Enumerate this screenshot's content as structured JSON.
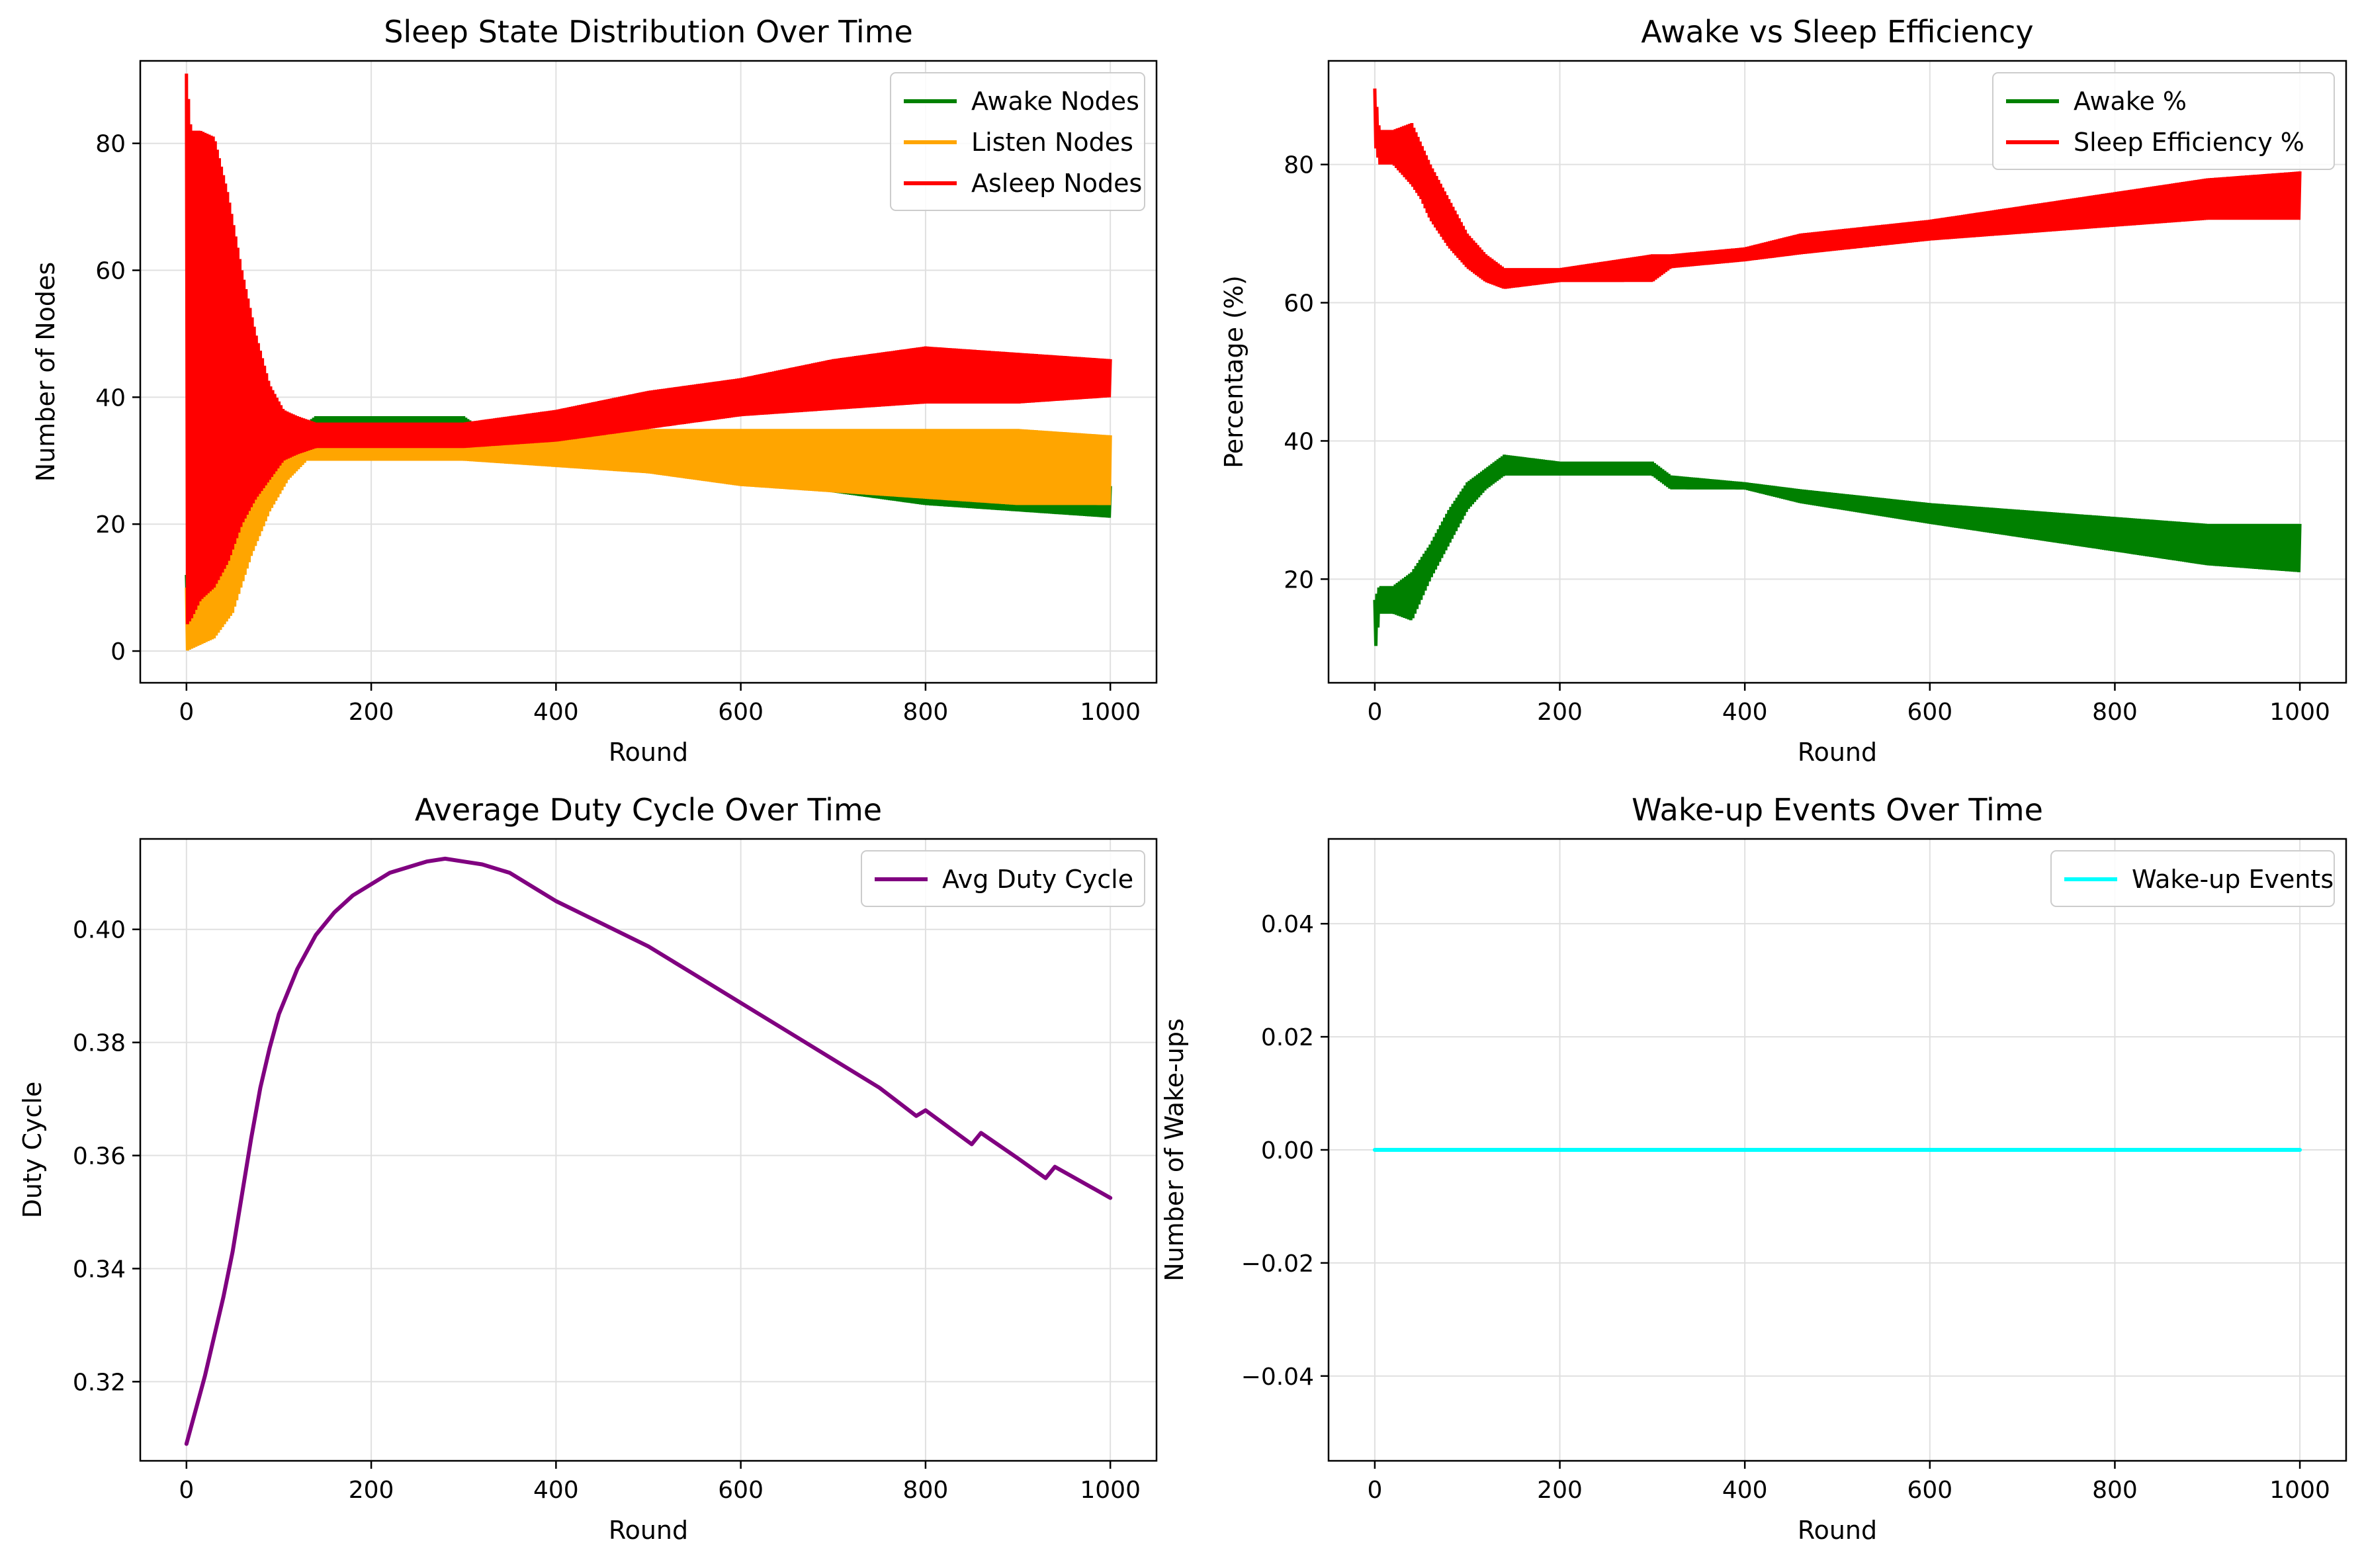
{
  "colors": {
    "awake": "#008000",
    "listen": "#FFA500",
    "asleep": "#FF0000",
    "duty": "#800080",
    "wakeup": "#00FFFF",
    "grid": "#E0E0E0",
    "frame": "#000000",
    "legend_border": "#CCCCCC"
  },
  "chart_data": [
    {
      "type": "line",
      "title": "Sleep State Distribution Over Time",
      "xlabel": "Round",
      "ylabel": "Number of Nodes",
      "xlim": [
        -50,
        1050
      ],
      "ylim": [
        -5,
        93
      ],
      "xticks": [
        "0",
        "200",
        "400",
        "600",
        "800",
        "1000"
      ],
      "yticks": [
        "0",
        "20",
        "40",
        "60",
        "80"
      ],
      "grid": true,
      "legend": "top-right",
      "series": [
        {
          "name": "Awake Nodes",
          "color_key": "awake",
          "band": true,
          "x": [
            0,
            15,
            30,
            50,
            70,
            90,
            110,
            130,
            140,
            200,
            250,
            300,
            320,
            400,
            500,
            600,
            700,
            800,
            900,
            1000
          ],
          "low": [
            5,
            8,
            9,
            15,
            20,
            25,
            29,
            31,
            32,
            32,
            32,
            32,
            31,
            30,
            29,
            27,
            25,
            23,
            22,
            21
          ],
          "high": [
            12,
            14,
            16,
            21,
            25,
            30,
            33,
            36,
            37,
            37,
            37,
            37,
            35,
            33,
            32,
            30,
            29,
            28,
            27,
            26
          ]
        },
        {
          "name": "Listen Nodes",
          "color_key": "listen",
          "band": true,
          "x": [
            0,
            15,
            30,
            50,
            70,
            90,
            110,
            130,
            200,
            300,
            400,
            500,
            600,
            700,
            800,
            900,
            1000
          ],
          "low": [
            0,
            1,
            2,
            6,
            15,
            22,
            27,
            30,
            30,
            30,
            29,
            28,
            26,
            25,
            24,
            23,
            23
          ],
          "high": [
            10,
            12,
            14,
            20,
            25,
            30,
            32,
            33,
            32,
            32,
            33,
            35,
            35,
            35,
            35,
            35,
            34
          ]
        },
        {
          "name": "Asleep Nodes",
          "color_key": "asleep",
          "band": true,
          "x": [
            0,
            5,
            15,
            30,
            45,
            60,
            75,
            90,
            105,
            120,
            140,
            200,
            300,
            400,
            500,
            600,
            700,
            800,
            900,
            1000
          ],
          "low": [
            4,
            5,
            8,
            10,
            14,
            20,
            24,
            27,
            30,
            31,
            32,
            32,
            32,
            33,
            35,
            37,
            38,
            39,
            39,
            40
          ],
          "high": [
            91,
            82,
            82,
            81,
            72,
            60,
            50,
            42,
            38,
            37,
            36,
            36,
            36,
            38,
            41,
            43,
            46,
            48,
            47,
            46
          ]
        }
      ]
    },
    {
      "type": "line",
      "title": "Awake vs Sleep Efficiency",
      "xlabel": "Round",
      "ylabel": "Percentage (%)",
      "xlim": [
        -50,
        1050
      ],
      "ylim": [
        5,
        95
      ],
      "xticks": [
        "0",
        "200",
        "400",
        "600",
        "800",
        "1000"
      ],
      "yticks": [
        "20",
        "40",
        "60",
        "80"
      ],
      "grid": true,
      "legend": "top-right",
      "series": [
        {
          "name": "Awake %",
          "color_key": "awake",
          "band": true,
          "x": [
            0,
            5,
            20,
            40,
            50,
            60,
            80,
            100,
            120,
            140,
            200,
            300,
            320,
            400,
            460,
            600,
            700,
            800,
            900,
            1000
          ],
          "low": [
            9,
            15,
            15,
            14,
            17,
            20,
            25,
            30,
            33,
            35,
            35,
            35,
            33,
            33,
            31,
            28,
            26,
            24,
            22,
            21
          ],
          "high": [
            17,
            19,
            19,
            21,
            23,
            25,
            30,
            34,
            36,
            38,
            37,
            37,
            35,
            34,
            33,
            31,
            30,
            29,
            28,
            28
          ]
        },
        {
          "name": "Sleep Efficiency %",
          "color_key": "asleep",
          "band": true,
          "x": [
            0,
            5,
            20,
            40,
            50,
            60,
            80,
            100,
            120,
            140,
            200,
            300,
            320,
            400,
            460,
            600,
            700,
            800,
            900,
            1000
          ],
          "low": [
            83,
            80,
            80,
            77,
            75,
            72,
            68,
            65,
            63,
            62,
            63,
            63,
            65,
            66,
            67,
            69,
            70,
            71,
            72,
            72
          ],
          "high": [
            91,
            85,
            85,
            86,
            83,
            80,
            75,
            70,
            67,
            65,
            65,
            67,
            67,
            68,
            70,
            72,
            74,
            76,
            78,
            79
          ]
        }
      ]
    },
    {
      "type": "line",
      "title": "Average Duty Cycle Over Time",
      "xlabel": "Round",
      "ylabel": "Duty Cycle",
      "xlim": [
        -50,
        1050
      ],
      "ylim": [
        0.306,
        0.416
      ],
      "xticks": [
        "0",
        "200",
        "400",
        "600",
        "800",
        "1000"
      ],
      "yticks": [
        "0.32",
        "0.34",
        "0.36",
        "0.38",
        "0.40"
      ],
      "grid": true,
      "legend": "top-right",
      "series": [
        {
          "name": "Avg Duty Cycle",
          "color_key": "duty",
          "band": false,
          "x": [
            0,
            10,
            20,
            30,
            40,
            50,
            60,
            70,
            80,
            90,
            100,
            120,
            140,
            160,
            180,
            200,
            220,
            240,
            260,
            280,
            300,
            320,
            350,
            380,
            400,
            450,
            500,
            550,
            600,
            650,
            700,
            750,
            790,
            800,
            850,
            860,
            900,
            930,
            940,
            1000
          ],
          "y": [
            0.309,
            0.315,
            0.321,
            0.328,
            0.335,
            0.343,
            0.353,
            0.363,
            0.372,
            0.379,
            0.385,
            0.393,
            0.399,
            0.403,
            0.406,
            0.408,
            0.41,
            0.411,
            0.412,
            0.4125,
            0.412,
            0.4115,
            0.41,
            0.407,
            0.405,
            0.401,
            0.397,
            0.392,
            0.387,
            0.382,
            0.377,
            0.372,
            0.367,
            0.368,
            0.362,
            0.364,
            0.3595,
            0.356,
            0.358,
            0.3525
          ]
        }
      ]
    },
    {
      "type": "line",
      "title": "Wake-up Events Over Time",
      "xlabel": "Round",
      "ylabel": "Number of Wake-ups",
      "xlim": [
        -50,
        1050
      ],
      "ylim": [
        -0.055,
        0.055
      ],
      "xticks": [
        "0",
        "200",
        "400",
        "600",
        "800",
        "1000"
      ],
      "yticks": [
        "−0.04",
        "−0.02",
        "0.00",
        "0.02",
        "0.04"
      ],
      "grid": true,
      "legend": "top-right",
      "series": [
        {
          "name": "Wake-up Events",
          "color_key": "wakeup",
          "band": false,
          "x": [
            0,
            1000
          ],
          "y": [
            0,
            0
          ]
        }
      ]
    }
  ]
}
